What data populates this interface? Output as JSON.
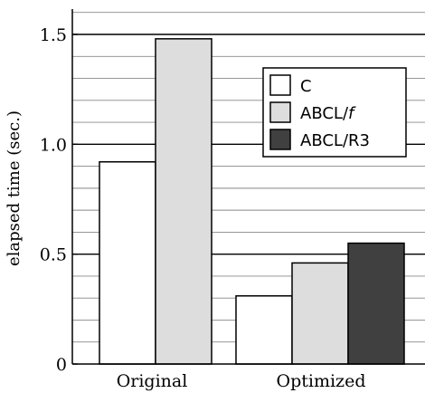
{
  "chart_data": {
    "type": "bar",
    "categories": [
      "Original",
      "Optimized"
    ],
    "series": [
      {
        "name": "C",
        "values": [
          0.92,
          0.31
        ],
        "color": "#ffffff"
      },
      {
        "name": "ABCL/f",
        "values": [
          1.48,
          0.46
        ],
        "color": "#dddddd"
      },
      {
        "name": "ABCL/R3",
        "values": [
          null,
          0.55
        ],
        "color": "#404040"
      }
    ],
    "ylabel": "elapsed time (sec.)",
    "xlabel": "",
    "ylim": [
      0,
      1.65
    ],
    "yticks": [
      {
        "value": 0,
        "label": "0"
      },
      {
        "value": 0.5,
        "label": "0.5"
      },
      {
        "value": 1.0,
        "label": "1.0"
      },
      {
        "value": 1.5,
        "label": "1.5"
      }
    ],
    "minor_grid_step": 0.1,
    "grid": true,
    "legend_position": "top-right",
    "legend_labels": {
      "c": "C",
      "abclf_prefix": "ABCL/",
      "abclf_italic": "f",
      "abclr3": "ABCL/R3"
    }
  }
}
